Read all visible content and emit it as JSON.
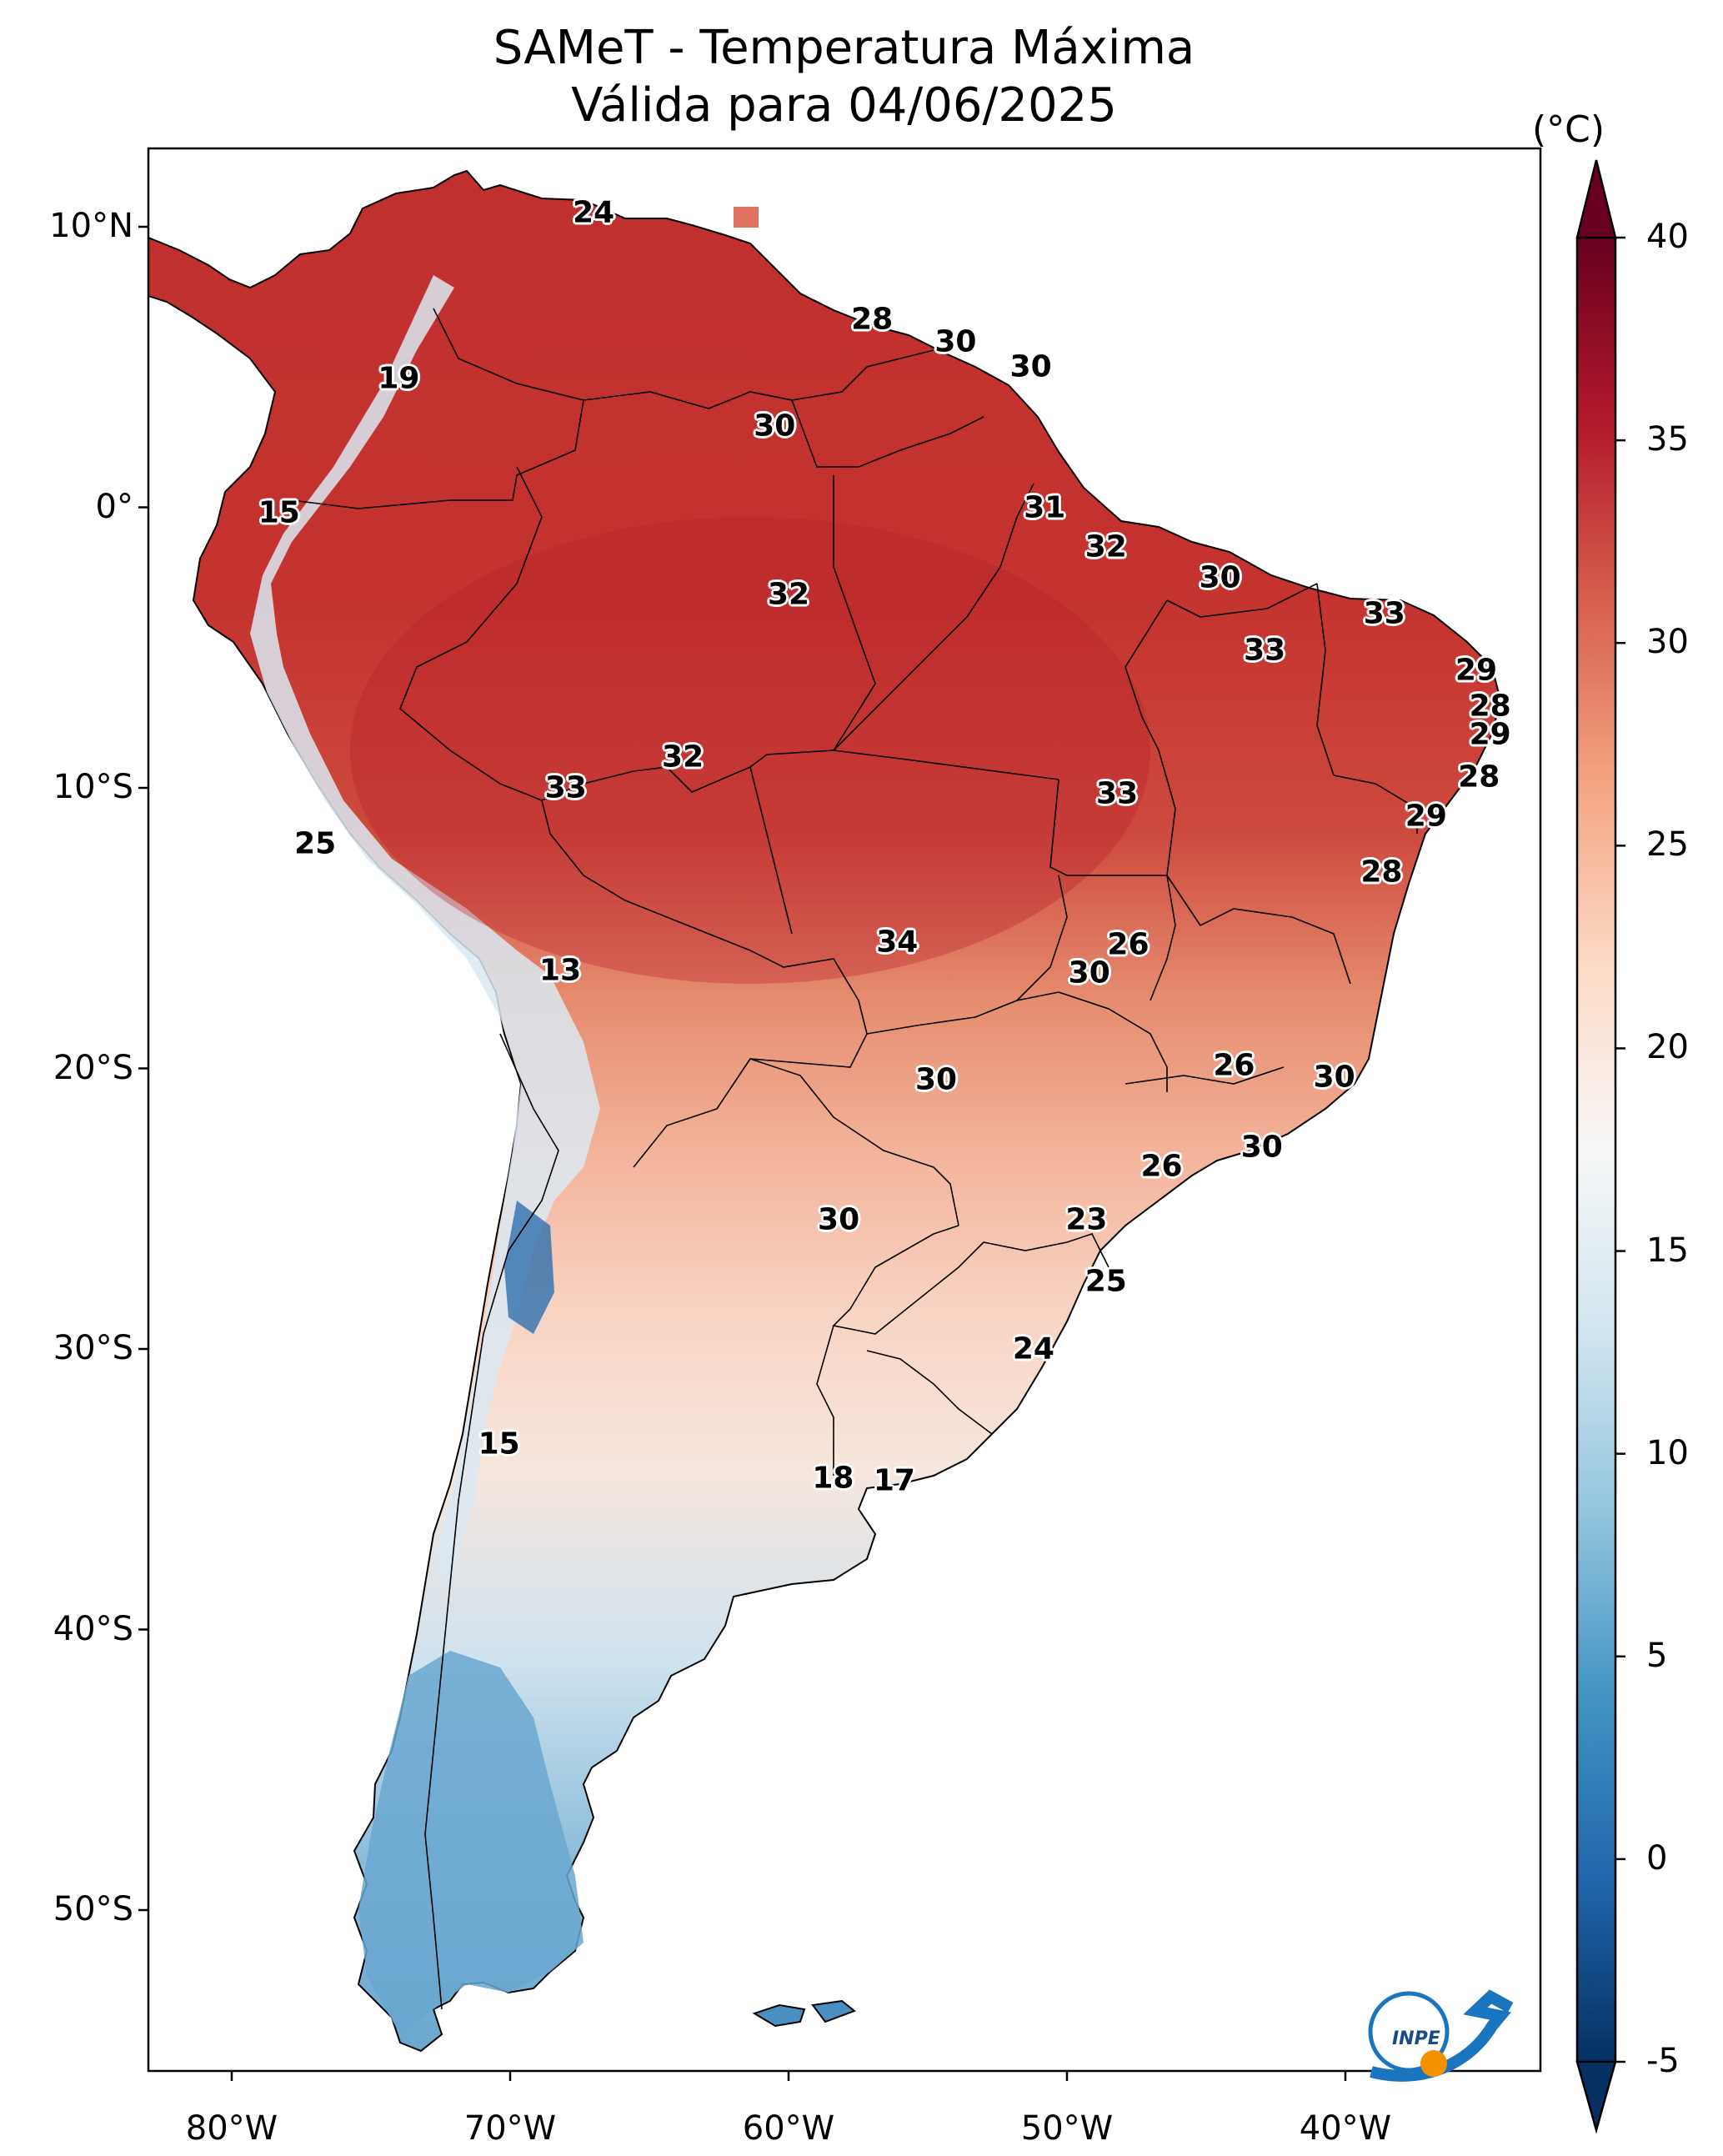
{
  "title": "SAMeT - Temperatura Máxima",
  "subtitle": "Válida para 04/06/2025",
  "colorbar": {
    "unit": "(°C)",
    "ticks": [
      "40",
      "35",
      "30",
      "25",
      "20",
      "15",
      "10",
      "5",
      "0",
      "-5"
    ],
    "range": [
      -5,
      40
    ],
    "colormap": "RdBu_r",
    "colors": [
      "#053061",
      "#2166ac",
      "#4393c3",
      "#92c5de",
      "#d1e5f0",
      "#f7f7f7",
      "#fddbc7",
      "#f4a582",
      "#d6604d",
      "#b2182b",
      "#67001f"
    ]
  },
  "axes": {
    "lat_ticks": [
      "10°N",
      "0°",
      "10°S",
      "20°S",
      "30°S",
      "40°S",
      "50°S"
    ],
    "lon_ticks": [
      "80°W",
      "70°W",
      "60°W",
      "50°W",
      "40°W"
    ]
  },
  "map": {
    "ocean_color": "#ffffff",
    "border_color": "#000000"
  },
  "labels": [
    {
      "text": "24",
      "lon": -67.0,
      "lat": 10.5
    },
    {
      "text": "28",
      "lon": -57.0,
      "lat": 6.7
    },
    {
      "text": "30",
      "lon": -54.0,
      "lat": 5.9
    },
    {
      "text": "30",
      "lon": -51.3,
      "lat": 5.0
    },
    {
      "text": "19",
      "lon": -74.0,
      "lat": 4.6
    },
    {
      "text": "30",
      "lon": -60.5,
      "lat": 2.9
    },
    {
      "text": "15",
      "lon": -78.3,
      "lat": -0.2
    },
    {
      "text": "31",
      "lon": -50.8,
      "lat": 0.0
    },
    {
      "text": "32",
      "lon": -48.6,
      "lat": -1.4
    },
    {
      "text": "30",
      "lon": -44.5,
      "lat": -2.5
    },
    {
      "text": "32",
      "lon": -60.0,
      "lat": -3.1
    },
    {
      "text": "33",
      "lon": -38.6,
      "lat": -3.8
    },
    {
      "text": "33",
      "lon": -42.9,
      "lat": -5.1
    },
    {
      "text": "29",
      "lon": -35.3,
      "lat": -5.8
    },
    {
      "text": "28",
      "lon": -34.8,
      "lat": -7.1
    },
    {
      "text": "29",
      "lon": -34.8,
      "lat": -8.1
    },
    {
      "text": "32",
      "lon": -63.8,
      "lat": -8.9
    },
    {
      "text": "28",
      "lon": -35.2,
      "lat": -9.6
    },
    {
      "text": "33",
      "lon": -68.0,
      "lat": -10.0
    },
    {
      "text": "33",
      "lon": -48.2,
      "lat": -10.2
    },
    {
      "text": "29",
      "lon": -37.1,
      "lat": -11.0
    },
    {
      "text": "25",
      "lon": -77.0,
      "lat": -12.0
    },
    {
      "text": "28",
      "lon": -38.7,
      "lat": -13.0
    },
    {
      "text": "34",
      "lon": -56.1,
      "lat": -15.5
    },
    {
      "text": "26",
      "lon": -47.8,
      "lat": -15.6
    },
    {
      "text": "13",
      "lon": -68.2,
      "lat": -16.5
    },
    {
      "text": "30",
      "lon": -49.2,
      "lat": -16.6
    },
    {
      "text": "26",
      "lon": -44.0,
      "lat": -19.9
    },
    {
      "text": "30",
      "lon": -40.4,
      "lat": -20.3
    },
    {
      "text": "30",
      "lon": -54.7,
      "lat": -20.4
    },
    {
      "text": "30",
      "lon": -43.0,
      "lat": -22.8
    },
    {
      "text": "26",
      "lon": -46.6,
      "lat": -23.5
    },
    {
      "text": "30",
      "lon": -58.2,
      "lat": -25.4
    },
    {
      "text": "23",
      "lon": -49.3,
      "lat": -25.4
    },
    {
      "text": "25",
      "lon": -48.6,
      "lat": -27.6
    },
    {
      "text": "24",
      "lon": -51.2,
      "lat": -30.0
    },
    {
      "text": "15",
      "lon": -70.4,
      "lat": -33.4
    },
    {
      "text": "18",
      "lon": -58.4,
      "lat": -34.6
    },
    {
      "text": "17",
      "lon": -56.2,
      "lat": -34.7
    }
  ],
  "logo": {
    "text": "INPE"
  }
}
